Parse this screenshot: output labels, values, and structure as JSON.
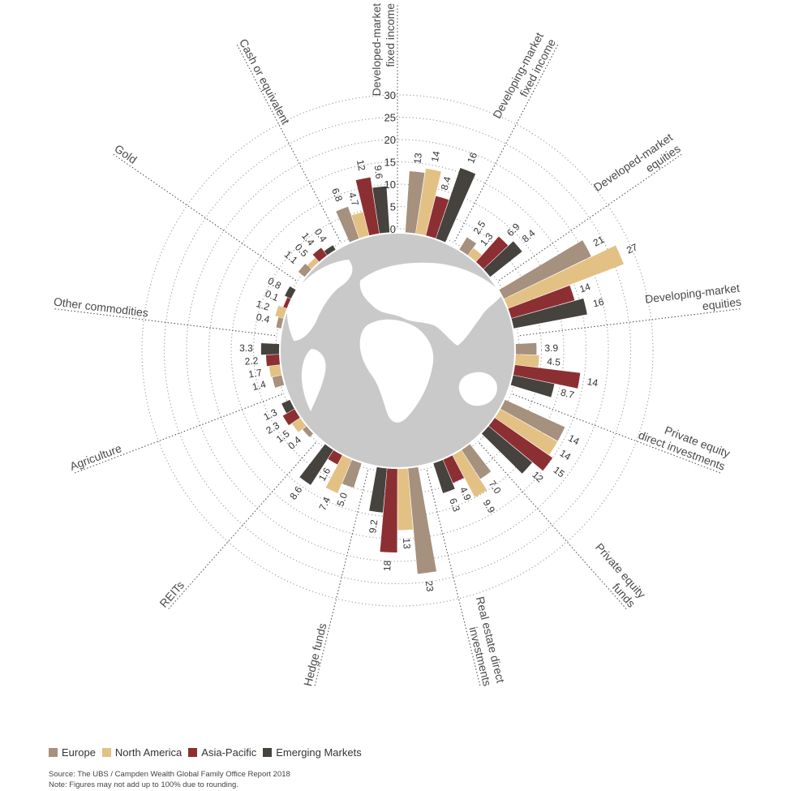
{
  "chart_data": {
    "type": "bar",
    "layout": "radial",
    "title": "",
    "r_ticks": [
      "0",
      "5",
      "10",
      "15",
      "20",
      "25",
      "30"
    ],
    "rlim": [
      0,
      30
    ],
    "grid": true,
    "categories": [
      "Developed-market fixed income",
      "Developing-market fixed income",
      "Developed-market equities",
      "Developing-market equities",
      "Private equity direct investments",
      "Private equity funds",
      "Real estate direct investments",
      "Hedge funds",
      "REITs",
      "Agriculture",
      "Other commodities",
      "Gold",
      "Cash or equivalent"
    ],
    "category_label_lines": [
      [
        "Developed-market",
        "fixed income"
      ],
      [
        "Developing-market",
        "fixed income"
      ],
      [
        "Developed-market",
        "equities"
      ],
      [
        "Developing-market",
        "equities"
      ],
      [
        "Private equity",
        "direct investments"
      ],
      [
        "Private equity",
        "funds"
      ],
      [
        "Real estate direct",
        "investments"
      ],
      [
        "Hedge funds"
      ],
      [
        "REITs"
      ],
      [
        "Agriculture"
      ],
      [
        "Other commodities"
      ],
      [
        "Gold"
      ],
      [
        "Cash or equivalent"
      ]
    ],
    "series": [
      {
        "name": "Europe",
        "color": "#a6907e",
        "values": [
          13,
          2.5,
          21,
          3.9,
          14,
          7.0,
          23,
          5.0,
          0.4,
          1.4,
          0.4,
          1.1,
          6.8
        ]
      },
      {
        "name": "North America",
        "color": "#e3c185",
        "values": [
          14,
          1.3,
          27,
          4.5,
          14,
          9.9,
          13,
          7.4,
          1.5,
          1.7,
          1.2,
          0.5,
          4.7
        ]
      },
      {
        "name": "Asia-Pacific",
        "color": "#8c2f33",
        "values": [
          8.4,
          6.9,
          14,
          14,
          15,
          4.9,
          18,
          1.6,
          2.3,
          2.2,
          0.1,
          1.4,
          12
        ]
      },
      {
        "name": "Emerging Markets",
        "color": "#46423d",
        "values": [
          16,
          8.4,
          16,
          8.7,
          12,
          6.3,
          9.2,
          8.6,
          1.3,
          3.3,
          0.8,
          0.4,
          9.6
        ]
      }
    ],
    "value_labels": [
      [
        "13",
        "14",
        "8.4",
        "16"
      ],
      [
        "2.5",
        "1.3",
        "6.9",
        "8.4"
      ],
      [
        "21",
        "27",
        "14",
        "16"
      ],
      [
        "3.9",
        "4.5",
        "14",
        "8.7"
      ],
      [
        "14",
        "14",
        "15",
        "12"
      ],
      [
        "7.0",
        "9.9",
        "4.9",
        "6.3"
      ],
      [
        "23",
        "13",
        "18",
        "9.2"
      ],
      [
        "5.0",
        "7.4",
        "1.6",
        "8.6"
      ],
      [
        "0.4",
        "1.5",
        "2.3",
        "1.3"
      ],
      [
        "1.4",
        "1.7",
        "2.2",
        "3.3"
      ],
      [
        "0.4",
        "1.2",
        "0.1",
        "0.8"
      ],
      [
        "1.1",
        "0.5",
        "1.4",
        "0.4"
      ],
      [
        "6.8",
        "4.7",
        "12",
        "9.6"
      ]
    ],
    "legend_position": "bottom-left"
  },
  "footer": {
    "source": "Source: The UBS / Campden Wealth Global Family Office Report 2018",
    "note": "Note: Figures may not add up to 100% due to rounding."
  },
  "colors": {
    "globe": "#c9c9c9",
    "land": "#ffffff",
    "grid": "#9a9a9a",
    "divider": "#555555"
  }
}
